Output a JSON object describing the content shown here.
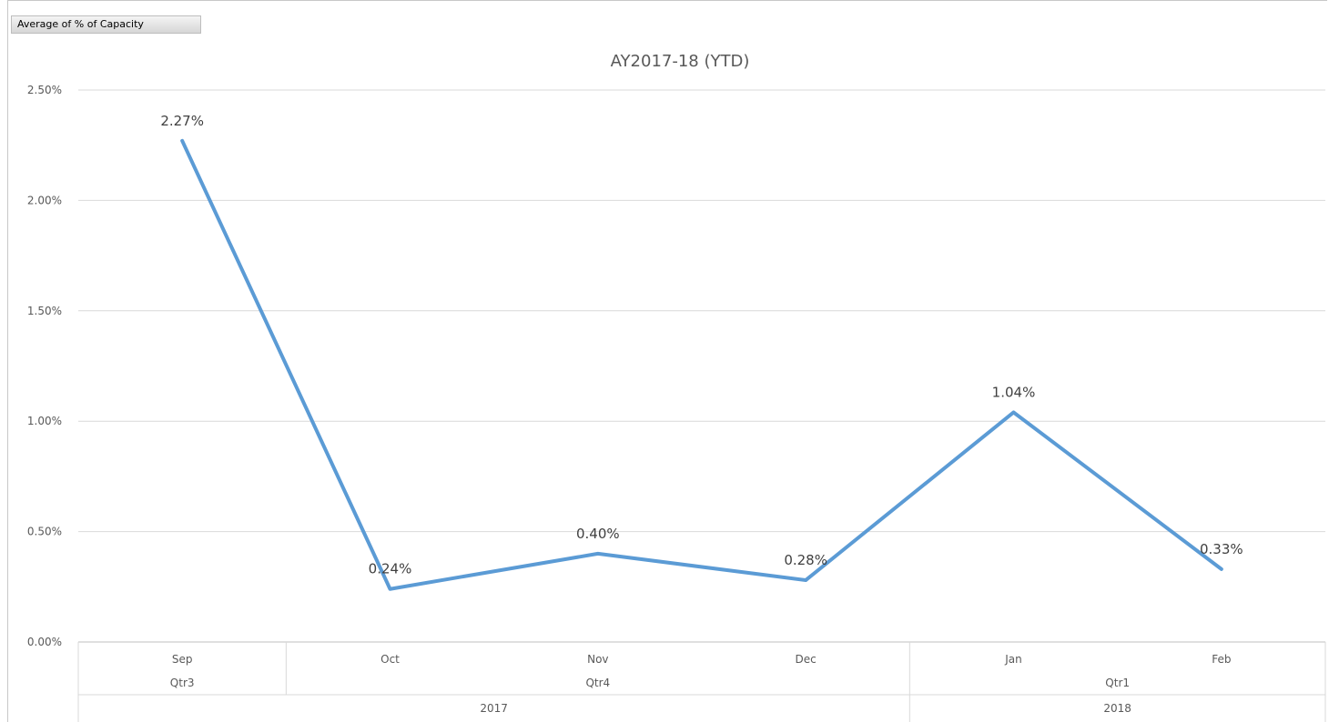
{
  "field_button": {
    "label": "Average of % of Capacity"
  },
  "chart_data": {
    "type": "line",
    "title": "AY2017-18 (YTD)",
    "xlabel": "",
    "ylabel": "",
    "ylim": [
      0,
      2.5
    ],
    "y_ticks": [
      "0.00%",
      "0.50%",
      "1.00%",
      "1.50%",
      "2.00%",
      "2.50%"
    ],
    "y_tick_values": [
      0,
      0.5,
      1.0,
      1.5,
      2.0,
      2.5
    ],
    "categories": [
      "Sep",
      "Oct",
      "Nov",
      "Dec",
      "Jan",
      "Feb"
    ],
    "quarters": [
      {
        "label": "Qtr3",
        "span": [
          0,
          0
        ]
      },
      {
        "label": "Qtr4",
        "span": [
          1,
          3
        ]
      },
      {
        "label": "Qtr1",
        "span": [
          4,
          5
        ]
      }
    ],
    "years": [
      {
        "label": "2017",
        "span": [
          0,
          3
        ]
      },
      {
        "label": "2018",
        "span": [
          4,
          5
        ]
      }
    ],
    "series": [
      {
        "values": [
          2.27,
          0.24,
          0.4,
          0.28,
          1.04,
          0.33
        ],
        "labels": [
          "2.27%",
          "0.24%",
          "0.40%",
          "0.28%",
          "1.04%",
          "0.33%"
        ]
      }
    ],
    "grid": true,
    "legend": "none",
    "line_color": "#5b9bd5",
    "grid_color": "#d9d9d9"
  }
}
